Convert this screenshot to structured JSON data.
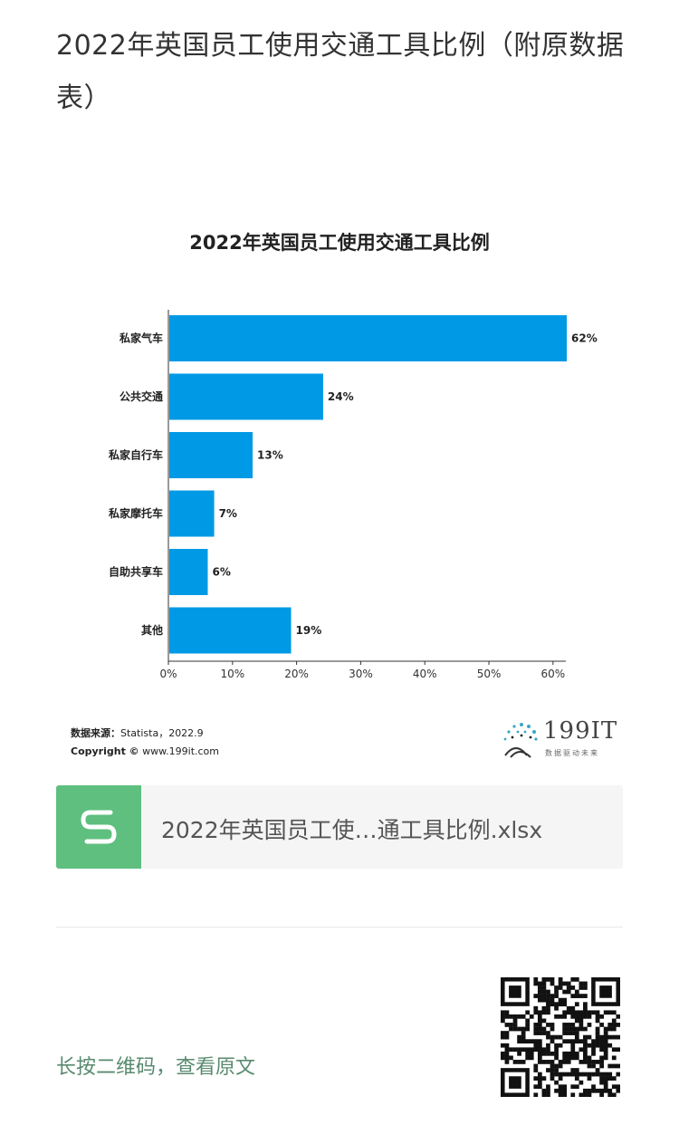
{
  "article": {
    "title": "2022年英国员工使用交通工具比例（附原数据表）"
  },
  "chart_data": {
    "type": "bar",
    "orientation": "horizontal",
    "title": "2022年英国员工使用交通工具比例",
    "categories": [
      "私家气车",
      "公共交通",
      "私家自行车",
      "私家摩托车",
      "自助共享车",
      "其他"
    ],
    "values": [
      62,
      24,
      13,
      7,
      6,
      19
    ],
    "value_labels": [
      "62%",
      "24%",
      "13%",
      "7%",
      "6%",
      "19%"
    ],
    "xlim": [
      0,
      62
    ],
    "xticks": [
      0,
      10,
      20,
      30,
      40,
      50,
      60
    ],
    "xtick_labels": [
      "0%",
      "10%",
      "20%",
      "30%",
      "40%",
      "50%",
      "60%"
    ],
    "bar_color": "#0099e5",
    "grid": false
  },
  "source": {
    "label": "数据来源：",
    "text": "Statista，2022.9",
    "copyright_label": "Copyright ©",
    "copyright_text": "www.199it.com"
  },
  "brand": {
    "name": "199IT",
    "tagline": "数据驱动未来"
  },
  "attachment": {
    "file_name": "2022年英国员工使…通工具比例.xlsx",
    "icon": "spreadsheet-s-icon",
    "icon_color": "#5fbf7f"
  },
  "footer": {
    "qr_hint": "长按二维码，查看原文",
    "qr_icon": "qr-code-icon"
  }
}
